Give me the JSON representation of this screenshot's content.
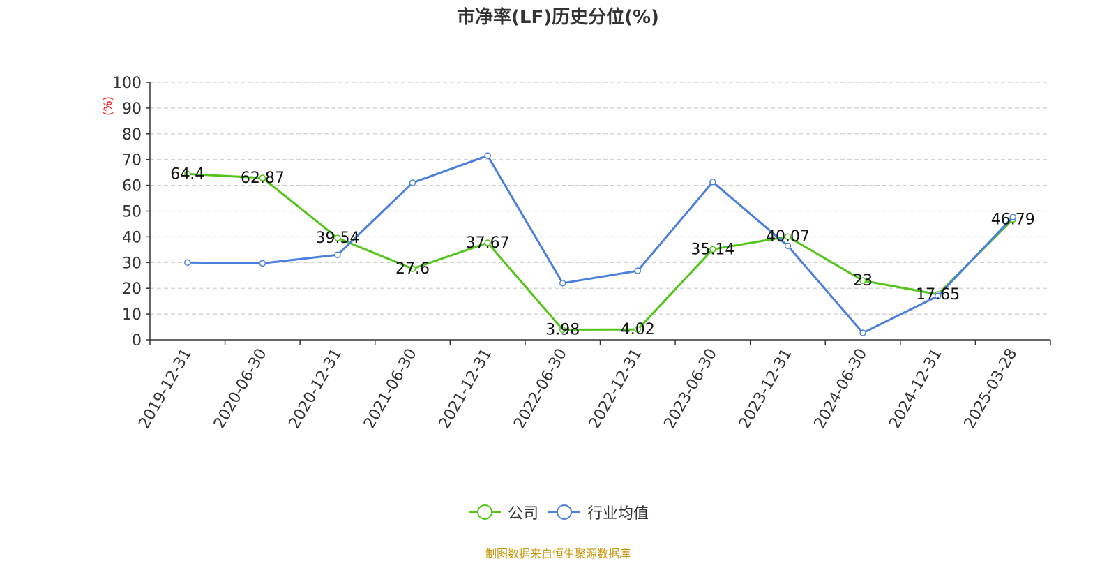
{
  "chart_data": {
    "type": "line",
    "title": "市净率(LF)历史分位(%)",
    "ylabel": "(%)",
    "ylim": [
      0,
      100
    ],
    "yticks": [
      0,
      10,
      20,
      30,
      40,
      50,
      60,
      70,
      80,
      90,
      100
    ],
    "grid": true,
    "legend_position": "bottom",
    "categories": [
      "2019-12-31",
      "2020-06-30",
      "2020-12-31",
      "2021-06-30",
      "2021-12-31",
      "2022-06-30",
      "2022-12-31",
      "2023-06-30",
      "2023-12-31",
      "2024-06-30",
      "2024-12-31",
      "2025-03-28"
    ],
    "series": [
      {
        "name": "公司",
        "color": "#52c41a",
        "labeled": true,
        "values": [
          64.4,
          62.87,
          39.54,
          27.6,
          37.67,
          3.98,
          4.02,
          35.14,
          40.07,
          23,
          17.65,
          46.79
        ]
      },
      {
        "name": "行业均值",
        "color": "#4a7fdb",
        "labeled": false,
        "values": [
          30.0,
          29.7,
          33.0,
          61.0,
          71.5,
          22.0,
          26.8,
          61.3,
          36.5,
          2.7,
          17.0,
          47.7
        ]
      }
    ]
  },
  "source_text": "制图数据来自恒生聚源数据库",
  "colors": {
    "title": "#333333",
    "axis": "#333333",
    "ylabel": "#ff0000",
    "grid": "#cccccc",
    "source": "#c8960c"
  }
}
